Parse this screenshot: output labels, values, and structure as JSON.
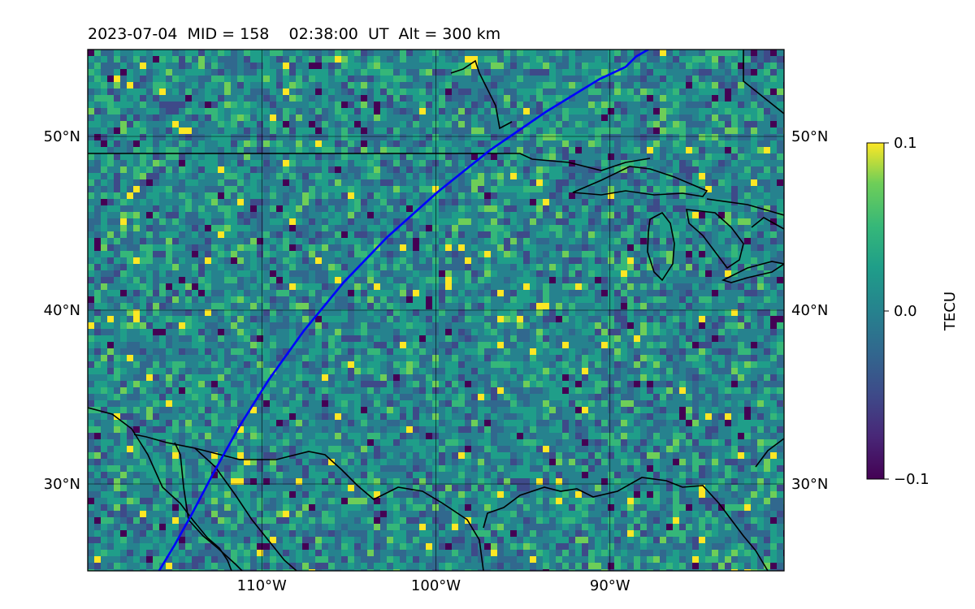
{
  "chart_data": {
    "type": "heatmap",
    "title": "2023-07-04  MID = 158    02:38:00  UT  Alt = 300 km",
    "x_ticks": [
      {
        "lon": -110,
        "label": "110°W"
      },
      {
        "lon": -100,
        "label": "100°W"
      },
      {
        "lon": -90,
        "label": "90°W"
      }
    ],
    "y_ticks": [
      {
        "lat": 50,
        "label": "50°N"
      },
      {
        "lat": 40,
        "label": "40°N"
      },
      {
        "lat": 30,
        "label": "30°N"
      }
    ],
    "lon_range": [
      -120,
      -80
    ],
    "lat_range": [
      25,
      55
    ],
    "grid": true,
    "colorbar": {
      "label": "TECU",
      "vmin": -0.1,
      "vmax": 0.1,
      "ticks": [
        {
          "value": 0.1,
          "label": "0.1"
        },
        {
          "value": 0.0,
          "label": "0.0"
        },
        {
          "value": -0.1,
          "label": "−0.1"
        }
      ]
    },
    "track": {
      "color": "#0000ff",
      "points": [
        [
          -115.9,
          25.0
        ],
        [
          -115.0,
          26.5
        ],
        [
          -114.0,
          28.3
        ],
        [
          -112.8,
          30.6
        ],
        [
          -111.3,
          33.3
        ],
        [
          -109.6,
          36.0
        ],
        [
          -107.6,
          38.8
        ],
        [
          -105.3,
          41.6
        ],
        [
          -102.8,
          44.2
        ],
        [
          -99.9,
          46.8
        ],
        [
          -96.9,
          49.2
        ],
        [
          -93.7,
          51.4
        ],
        [
          -90.6,
          53.3
        ],
        [
          -89.1,
          54.0
        ],
        [
          -88.5,
          54.6
        ],
        [
          -87.8,
          55.0
        ]
      ]
    },
    "colors": {
      "background": "#2a8c8b",
      "viridis_low": "#440154",
      "viridis_mid": "#21918c",
      "viridis_high": "#fde725",
      "coastline": "#000000"
    }
  }
}
